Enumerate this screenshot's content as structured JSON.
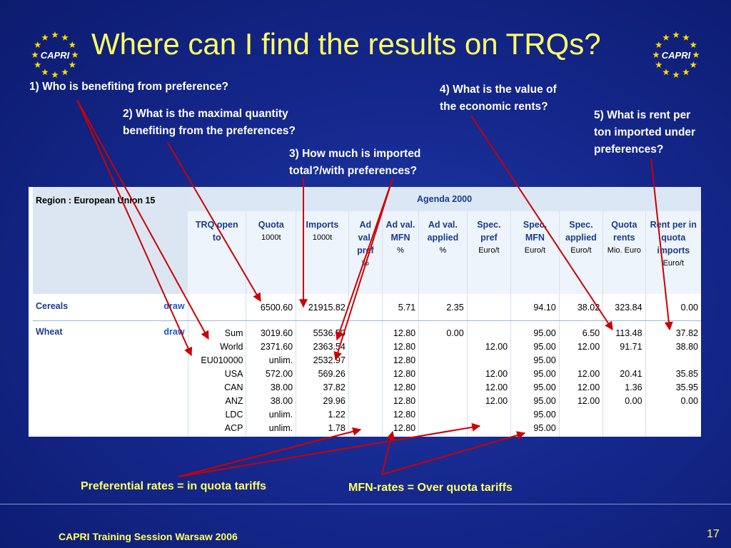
{
  "title": "Where can I find the results on TRQs?",
  "logo_text": "CAPRI",
  "questions": {
    "q1": [
      "1) Who is benefiting from preference?"
    ],
    "q2": [
      "2) What is the maximal quantity",
      "benefiting from the preferences?"
    ],
    "q3": [
      "3) How much is imported",
      "total?/with preferences?"
    ],
    "q4": [
      "4) What is the value of",
      "the economic rents?"
    ],
    "q5": [
      "5) What is rent per",
      "ton imported under",
      "preferences?"
    ]
  },
  "table": {
    "region_label": "Region : European Union 15",
    "agenda_label": "Agenda 2000",
    "columns": [
      {
        "label": "TRQ open to",
        "unit": ""
      },
      {
        "label": "Quota",
        "unit": "1000t"
      },
      {
        "label": "Imports",
        "unit": "1000t"
      },
      {
        "label": "Ad val. pref",
        "unit": "%"
      },
      {
        "label": "Ad val. MFN",
        "unit": "%"
      },
      {
        "label": "Ad val. applied",
        "unit": "%"
      },
      {
        "label": "Spec. pref",
        "unit": "Euro/t"
      },
      {
        "label": "Spec. MFN",
        "unit": "Euro/t"
      },
      {
        "label": "Spec. applied",
        "unit": "Euro/t"
      },
      {
        "label": "Quota rents",
        "unit": "Mio. Euro"
      },
      {
        "label": "Rent per in quota imports",
        "unit": "Euro/t"
      }
    ],
    "rows": [
      {
        "name": "Cereals",
        "draw": "draw",
        "cells": [
          [
            ""
          ],
          [
            "6500.60"
          ],
          [
            "21915.82"
          ],
          [
            ""
          ],
          [
            "5.71"
          ],
          [
            "2.35"
          ],
          [
            ""
          ],
          [
            "94.10"
          ],
          [
            "38.02"
          ],
          [
            "323.84"
          ],
          [
            "0.00"
          ]
        ]
      },
      {
        "name": "Wheat",
        "draw": "draw",
        "cells": [
          [
            "Sum",
            "World",
            "EU010000",
            "USA",
            "CAN",
            "ANZ",
            "LDC",
            "ACP"
          ],
          [
            "3019.60",
            "2371.60",
            "unlim.",
            "572.00",
            "38.00",
            "38.00",
            "unlim.",
            "unlim."
          ],
          [
            "5536.50",
            "2363.54",
            "2532.97",
            "569.26",
            "37.82",
            "29.96",
            "1.22",
            "1.78"
          ],
          [
            "",
            "",
            "",
            "",
            "",
            "",
            "",
            ""
          ],
          [
            "12.80",
            "12.80",
            "12.80",
            "12.80",
            "12.80",
            "12.80",
            "12.80",
            "12.80"
          ],
          [
            "0.00",
            "",
            "",
            "",
            "",
            "",
            "",
            ""
          ],
          [
            "",
            "12.00",
            "",
            "12.00",
            "12.00",
            "12.00",
            "",
            ""
          ],
          [
            "95.00",
            "95.00",
            "95.00",
            "95.00",
            "95.00",
            "95.00",
            "95.00",
            "95.00"
          ],
          [
            "6.50",
            "12.00",
            "",
            "12.00",
            "12.00",
            "12.00",
            "",
            ""
          ],
          [
            "113.48",
            "91.71",
            "",
            "20.41",
            "1.36",
            "0.00",
            "",
            ""
          ],
          [
            "37.82",
            "38.80",
            "",
            "35.85",
            "35.95",
            "0.00",
            "",
            ""
          ]
        ]
      }
    ]
  },
  "bottom_labels": {
    "preferential": "Preferential rates = in quota tariffs",
    "mfn": "MFN-rates = Over quota tariffs"
  },
  "footer": "CAPRI Training Session Warsaw 2006",
  "page_number": "17",
  "colors": {
    "background": "#15288e",
    "title": "#ffff66",
    "arrows": "#cc0000",
    "logo": "#ffdd00"
  }
}
